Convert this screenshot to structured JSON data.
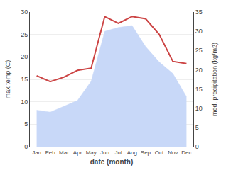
{
  "chart_data": {
    "type": "line",
    "xlabel": "date (month)",
    "ylabel": "max temp (C)",
    "y2label": "med. precipitation (kg/m2)",
    "categories": [
      "Jan",
      "Feb",
      "Mar",
      "Apr",
      "May",
      "Jun",
      "Jul",
      "Aug",
      "Sep",
      "Oct",
      "Nov",
      "Dec"
    ],
    "series": [
      {
        "type": "line",
        "color": "#cc4444",
        "values": [
          15.8,
          14.5,
          15.5,
          17.0,
          17.5,
          29.0,
          27.5,
          29.0,
          28.5,
          25.0,
          19.0,
          18.5
        ]
      },
      {
        "type": "area",
        "color": "#c8d8f8",
        "axis": "y2",
        "values": [
          9.5,
          9.0,
          10.5,
          12.0,
          17.0,
          30.0,
          31.0,
          31.5,
          26.0,
          22.0,
          19.0,
          13.0
        ]
      }
    ],
    "ylim": [
      0,
      30
    ],
    "yticks": [
      0,
      5,
      10,
      15,
      20,
      25,
      30
    ],
    "y2lim": [
      0,
      35
    ],
    "y2ticks": [
      0,
      5,
      10,
      15,
      20,
      25,
      30,
      35
    ],
    "grid": true
  }
}
